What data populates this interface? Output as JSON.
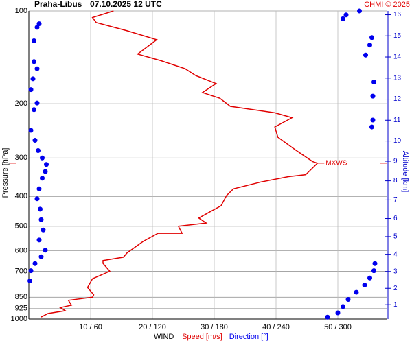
{
  "chart_data": {
    "type": "sounding",
    "title": "Praha-Libus",
    "subtitle": "07.10.2025 12 UTC",
    "credit": "CHMI © 2025",
    "ylabel": "Pressure [hPa]",
    "y2label": "Altitude [km]",
    "xlabel": "WIND",
    "annotation": "MXWS",
    "ylog": true,
    "ylim": [
      1000,
      100
    ],
    "yticks": [
      100,
      200,
      300,
      400,
      500,
      600,
      700,
      850,
      925,
      1000
    ],
    "y2ticks": [
      1,
      2,
      3,
      4,
      5,
      6,
      7,
      8,
      9,
      10,
      11,
      12,
      13,
      14,
      15,
      16
    ],
    "xlim": [
      0,
      58
    ],
    "x2lim": [
      0,
      348
    ],
    "xticks": [
      {
        "value": 10,
        "label": "10 / 60"
      },
      {
        "value": 20,
        "label": "20 / 120"
      },
      {
        "value": 30,
        "label": "30 / 180"
      },
      {
        "value": 40,
        "label": "40 / 240"
      },
      {
        "value": 50,
        "label": "50 / 300"
      }
    ],
    "grid": true,
    "series": [
      {
        "name": "Speed [m/s]",
        "color": "#e00000",
        "mode": "line",
        "pressure": [
          985,
          960,
          940,
          918,
          902,
          870,
          850,
          835,
          790,
          740,
          700,
          660,
          646,
          630,
          610,
          560,
          527,
          527,
          500,
          488,
          470,
          450,
          429,
          397,
          378,
          359,
          345,
          340,
          312,
          308,
          282,
          257,
          238,
          222,
          214,
          204,
          192,
          184,
          172,
          162,
          154,
          145,
          138,
          124,
          116,
          109,
          105,
          100
        ],
        "values": [
          2.0,
          3.1,
          5.9,
          5.1,
          6.9,
          6.4,
          10.3,
          10.5,
          9.5,
          10.3,
          13.1,
          12.0,
          12.0,
          15.3,
          15.9,
          18.5,
          20.9,
          24.8,
          24.2,
          28.7,
          27.5,
          29.2,
          31.1,
          32.0,
          33.1,
          37.6,
          42.0,
          44.8,
          46.7,
          45.9,
          43.1,
          40.3,
          39.8,
          42.6,
          39.8,
          32.6,
          30.9,
          28.1,
          30.3,
          27.0,
          25.3,
          21.4,
          17.6,
          20.7,
          15.9,
          10.9,
          10.3,
          13.7
        ]
      },
      {
        "name": "Direction [°]",
        "color": "#0000ee",
        "mode": "dots",
        "axis": "x2",
        "pressure": [
          110,
          113,
          125,
          146,
          154,
          166,
          180,
          199,
          209,
          244,
          263,
          284,
          300,
          315,
          332,
          349,
          378,
          407,
          440,
          476,
          514,
          554,
          598,
          628,
          661,
          697,
          752,
          100,
          103,
          106,
          122,
          129,
          139,
          170,
          189,
          226,
          238,
          661,
          697,
          736,
          776,
          819,
          864,
          911,
          955,
          986
        ],
        "values": [
          10,
          8,
          5,
          5,
          8,
          4,
          2,
          8,
          5,
          2,
          6,
          9,
          13,
          17,
          16,
          13,
          10,
          8,
          11,
          12,
          14,
          10,
          16,
          12,
          6,
          2,
          1,
          321,
          308,
          305,
          333,
          331,
          327,
          335,
          334,
          334,
          333,
          336,
          335,
          331,
          326,
          318,
          310,
          305,
          300,
          290
        ]
      }
    ]
  }
}
